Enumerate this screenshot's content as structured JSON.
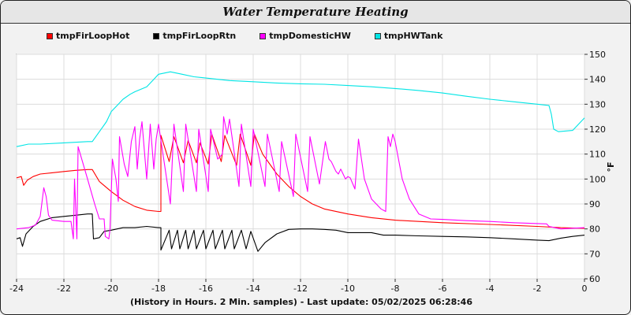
{
  "chart_data": {
    "type": "line",
    "title": "Water Temperature Heating",
    "xlabel": "(History in Hours. 2 Min. samples) - Last update: 05/02/2025 06:28:46",
    "ylabel": "°F",
    "xlim": [
      -24,
      0
    ],
    "ylim": [
      60,
      150
    ],
    "xticks": [
      -24,
      -22,
      -20,
      -18,
      -16,
      -14,
      -12,
      -10,
      -8,
      -6,
      -4,
      -2,
      0
    ],
    "yticks": [
      60,
      70,
      80,
      90,
      100,
      110,
      120,
      130,
      140,
      150
    ],
    "grid": true,
    "legend_position": "top-left",
    "series": [
      {
        "name": "tmpFirLoopHot",
        "color": "#ff0000",
        "points": [
          [
            -24,
            100.5
          ],
          [
            -23.8,
            101
          ],
          [
            -23.7,
            97.5
          ],
          [
            -23.55,
            99.5
          ],
          [
            -23.3,
            101
          ],
          [
            -23,
            102
          ],
          [
            -22.5,
            102.5
          ],
          [
            -22,
            103
          ],
          [
            -21.5,
            103.5
          ],
          [
            -21,
            103.8
          ],
          [
            -20.8,
            103.8
          ],
          [
            -20.5,
            99
          ],
          [
            -20,
            95
          ],
          [
            -19.5,
            91.5
          ],
          [
            -19,
            89
          ],
          [
            -18.5,
            87.5
          ],
          [
            -18,
            87
          ],
          [
            -17.9,
            87
          ],
          [
            -17.9,
            117.5
          ],
          [
            -17.55,
            107
          ],
          [
            -17.35,
            117
          ],
          [
            -16.95,
            106.5
          ],
          [
            -16.75,
            115.5
          ],
          [
            -16.4,
            106.5
          ],
          [
            -16.25,
            114.5
          ],
          [
            -15.9,
            106
          ],
          [
            -15.75,
            118
          ],
          [
            -15.35,
            107
          ],
          [
            -15.2,
            117.5
          ],
          [
            -14.7,
            105.5
          ],
          [
            -14.55,
            118
          ],
          [
            -14.1,
            105.5
          ],
          [
            -13.95,
            118
          ],
          [
            -13.6,
            110
          ],
          [
            -13,
            102
          ],
          [
            -12.5,
            97
          ],
          [
            -12,
            93
          ],
          [
            -11.5,
            90
          ],
          [
            -11,
            88
          ],
          [
            -10,
            86
          ],
          [
            -9,
            84.5
          ],
          [
            -8,
            83.5
          ],
          [
            -7,
            83
          ],
          [
            -6,
            82.5
          ],
          [
            -4,
            81.8
          ],
          [
            -2,
            81
          ],
          [
            -1,
            80.5
          ],
          [
            0,
            80.2
          ]
        ]
      },
      {
        "name": "tmpFirLoopRtn",
        "color": "#000000",
        "points": [
          [
            -24,
            76
          ],
          [
            -23.85,
            76.5
          ],
          [
            -23.75,
            73
          ],
          [
            -23.6,
            78
          ],
          [
            -23.3,
            81
          ],
          [
            -23,
            83
          ],
          [
            -22.5,
            84.5
          ],
          [
            -22,
            85
          ],
          [
            -21.5,
            85.5
          ],
          [
            -21,
            86
          ],
          [
            -20.8,
            86
          ],
          [
            -20.75,
            76
          ],
          [
            -20.5,
            76.5
          ],
          [
            -20.3,
            79
          ],
          [
            -20,
            79.5
          ],
          [
            -19.5,
            80.5
          ],
          [
            -19,
            80.5
          ],
          [
            -18.5,
            81
          ],
          [
            -18,
            80.5
          ],
          [
            -17.9,
            80.5
          ],
          [
            -17.9,
            71.5
          ],
          [
            -17.55,
            79.5
          ],
          [
            -17.45,
            72
          ],
          [
            -17.2,
            79.5
          ],
          [
            -17.1,
            72
          ],
          [
            -16.85,
            79.5
          ],
          [
            -16.75,
            72
          ],
          [
            -16.5,
            79.5
          ],
          [
            -16.4,
            72
          ],
          [
            -16.1,
            79.5
          ],
          [
            -16,
            72
          ],
          [
            -15.7,
            79.5
          ],
          [
            -15.6,
            72
          ],
          [
            -15.3,
            79.5
          ],
          [
            -15.2,
            72
          ],
          [
            -14.9,
            79.5
          ],
          [
            -14.8,
            72
          ],
          [
            -14.5,
            79.5
          ],
          [
            -14.3,
            72
          ],
          [
            -14.1,
            79
          ],
          [
            -13.8,
            71
          ],
          [
            -13.5,
            74.5
          ],
          [
            -13,
            78
          ],
          [
            -12.5,
            79.8
          ],
          [
            -12,
            80
          ],
          [
            -11.5,
            80
          ],
          [
            -11,
            79.8
          ],
          [
            -10.5,
            79.5
          ],
          [
            -10,
            78.5
          ],
          [
            -9.5,
            78.5
          ],
          [
            -9,
            78.5
          ],
          [
            -8.5,
            77.5
          ],
          [
            -8,
            77.5
          ],
          [
            -7,
            77.2
          ],
          [
            -6,
            77
          ],
          [
            -5,
            76.8
          ],
          [
            -4,
            76.5
          ],
          [
            -3,
            76
          ],
          [
            -2,
            75.5
          ],
          [
            -1.5,
            75.3
          ],
          [
            -1,
            76.3
          ],
          [
            -0.5,
            77
          ],
          [
            0,
            77.5
          ]
        ]
      },
      {
        "name": "tmpDomesticHW",
        "color": "#ff00ff",
        "points": [
          [
            -24,
            80
          ],
          [
            -23.5,
            80.5
          ],
          [
            -23.2,
            81.5
          ],
          [
            -23,
            85
          ],
          [
            -22.85,
            96.5
          ],
          [
            -22.75,
            93
          ],
          [
            -22.65,
            85.5
          ],
          [
            -22.5,
            83.5
          ],
          [
            -22,
            83
          ],
          [
            -21.7,
            83
          ],
          [
            -21.6,
            76
          ],
          [
            -21.55,
            100
          ],
          [
            -21.45,
            76
          ],
          [
            -21.4,
            113
          ],
          [
            -21,
            100
          ],
          [
            -20.7,
            90
          ],
          [
            -20.5,
            84
          ],
          [
            -20.3,
            84
          ],
          [
            -20.25,
            77
          ],
          [
            -20.1,
            76
          ],
          [
            -20.05,
            80
          ],
          [
            -19.95,
            108
          ],
          [
            -19.8,
            100
          ],
          [
            -19.7,
            91
          ],
          [
            -19.65,
            117
          ],
          [
            -19.45,
            106
          ],
          [
            -19.3,
            101
          ],
          [
            -19.15,
            115
          ],
          [
            -19,
            121
          ],
          [
            -18.9,
            104
          ],
          [
            -18.8,
            116
          ],
          [
            -18.7,
            123
          ],
          [
            -18.5,
            100
          ],
          [
            -18.35,
            122
          ],
          [
            -18.2,
            104
          ],
          [
            -18.1,
            116
          ],
          [
            -18,
            122
          ],
          [
            -17.5,
            90
          ],
          [
            -17.35,
            122
          ],
          [
            -16.95,
            95
          ],
          [
            -16.85,
            122
          ],
          [
            -16.4,
            95
          ],
          [
            -16.3,
            120
          ],
          [
            -15.9,
            95
          ],
          [
            -15.8,
            120
          ],
          [
            -15.5,
            108
          ],
          [
            -15.3,
            110
          ],
          [
            -15.25,
            125
          ],
          [
            -15.1,
            118
          ],
          [
            -15,
            124
          ],
          [
            -14.6,
            97
          ],
          [
            -14.5,
            122
          ],
          [
            -14.1,
            97
          ],
          [
            -14,
            120
          ],
          [
            -13.5,
            97
          ],
          [
            -13.4,
            118
          ],
          [
            -12.9,
            95
          ],
          [
            -12.8,
            115
          ],
          [
            -12.3,
            93
          ],
          [
            -12.2,
            118
          ],
          [
            -11.7,
            95
          ],
          [
            -11.6,
            117
          ],
          [
            -11.2,
            98
          ],
          [
            -10.95,
            115
          ],
          [
            -10.8,
            108
          ],
          [
            -10.7,
            107
          ],
          [
            -10.6,
            105
          ],
          [
            -10.5,
            103
          ],
          [
            -10.4,
            102
          ],
          [
            -10.3,
            104
          ],
          [
            -10.2,
            102
          ],
          [
            -10.1,
            100
          ],
          [
            -10,
            101
          ],
          [
            -9.9,
            100.5
          ],
          [
            -9.7,
            96
          ],
          [
            -9.55,
            116
          ],
          [
            -9.3,
            100
          ],
          [
            -9,
            92
          ],
          [
            -8.6,
            88
          ],
          [
            -8.4,
            87
          ],
          [
            -8.3,
            117
          ],
          [
            -8.2,
            113
          ],
          [
            -8.1,
            118
          ],
          [
            -8,
            115
          ],
          [
            -7.7,
            100
          ],
          [
            -7.4,
            92
          ],
          [
            -7,
            86
          ],
          [
            -6.5,
            84
          ],
          [
            -6,
            83.8
          ],
          [
            -5,
            83.3
          ],
          [
            -4,
            83
          ],
          [
            -3,
            82.5
          ],
          [
            -1.6,
            82
          ],
          [
            -1.5,
            81
          ],
          [
            -1,
            80
          ],
          [
            0,
            80.5
          ]
        ]
      },
      {
        "name": "tmpHWTank",
        "color": "#00e5e5",
        "points": [
          [
            -24,
            113
          ],
          [
            -23.5,
            114
          ],
          [
            -23,
            114
          ],
          [
            -22,
            114.5
          ],
          [
            -21,
            115
          ],
          [
            -20.8,
            115
          ],
          [
            -20.5,
            119
          ],
          [
            -20.2,
            123
          ],
          [
            -20,
            127
          ],
          [
            -19.8,
            129
          ],
          [
            -19.5,
            132
          ],
          [
            -19.2,
            134
          ],
          [
            -19,
            135
          ],
          [
            -18.5,
            137
          ],
          [
            -18.2,
            140
          ],
          [
            -18,
            142
          ],
          [
            -17.5,
            143
          ],
          [
            -17,
            142
          ],
          [
            -16.5,
            141
          ],
          [
            -16,
            140.5
          ],
          [
            -15,
            139.5
          ],
          [
            -14,
            139
          ],
          [
            -13,
            138.5
          ],
          [
            -12,
            138.2
          ],
          [
            -11,
            138
          ],
          [
            -10,
            137.5
          ],
          [
            -9,
            137
          ],
          [
            -8,
            136.3
          ],
          [
            -7,
            135.5
          ],
          [
            -6,
            134.5
          ],
          [
            -5,
            133.2
          ],
          [
            -4,
            132
          ],
          [
            -3,
            131
          ],
          [
            -2,
            130
          ],
          [
            -1.5,
            129.5
          ],
          [
            -1.4,
            126
          ],
          [
            -1.3,
            120
          ],
          [
            -1.1,
            119
          ],
          [
            -0.5,
            119.5
          ],
          [
            0,
            124.5
          ]
        ]
      }
    ]
  }
}
